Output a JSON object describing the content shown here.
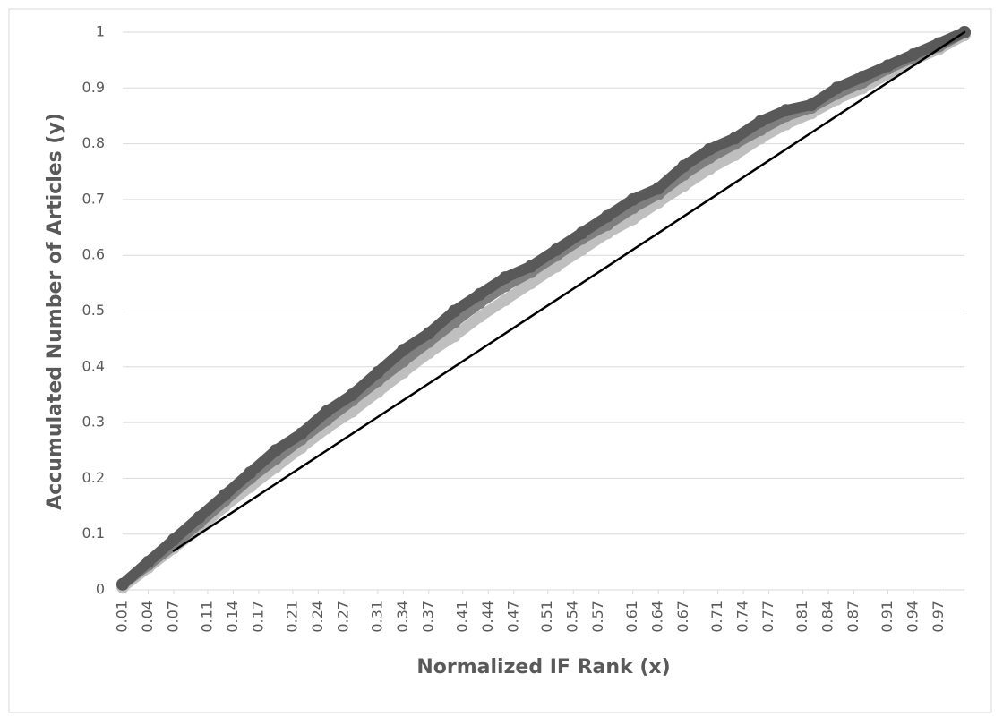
{
  "chart_data": {
    "type": "scatter-line",
    "x_label": "Normalized IF Rank (x)",
    "y_label": "Accumulated Number of Articles (y)",
    "x": [
      0.01,
      0.04,
      0.07,
      0.1,
      0.13,
      0.16,
      0.19,
      0.22,
      0.25,
      0.28,
      0.31,
      0.34,
      0.37,
      0.4,
      0.43,
      0.46,
      0.49,
      0.52,
      0.55,
      0.58,
      0.61,
      0.64,
      0.67,
      0.7,
      0.73,
      0.76,
      0.79,
      0.82,
      0.85,
      0.88,
      0.91,
      0.94,
      0.97,
      1.0
    ],
    "series": [
      {
        "color": "#bfbfbf",
        "values": [
          0.005,
          0.04,
          0.075,
          0.11,
          0.15,
          0.185,
          0.22,
          0.255,
          0.29,
          0.32,
          0.355,
          0.39,
          0.425,
          0.455,
          0.49,
          0.52,
          0.55,
          0.58,
          0.61,
          0.64,
          0.665,
          0.695,
          0.725,
          0.755,
          0.78,
          0.81,
          0.835,
          0.855,
          0.88,
          0.9,
          0.925,
          0.95,
          0.97,
          0.995
        ]
      },
      {
        "color": "#7f7f7f",
        "values": [
          0.01,
          0.045,
          0.08,
          0.12,
          0.16,
          0.2,
          0.235,
          0.27,
          0.305,
          0.34,
          0.375,
          0.41,
          0.445,
          0.48,
          0.515,
          0.545,
          0.57,
          0.6,
          0.63,
          0.655,
          0.685,
          0.71,
          0.745,
          0.775,
          0.8,
          0.825,
          0.85,
          0.865,
          0.89,
          0.91,
          0.935,
          0.955,
          0.975,
          1.0
        ]
      },
      {
        "color": "#595959",
        "values": [
          0.01,
          0.05,
          0.09,
          0.13,
          0.17,
          0.21,
          0.25,
          0.28,
          0.32,
          0.35,
          0.39,
          0.43,
          0.46,
          0.5,
          0.53,
          0.56,
          0.58,
          0.61,
          0.64,
          0.67,
          0.7,
          0.72,
          0.76,
          0.79,
          0.81,
          0.84,
          0.86,
          0.87,
          0.9,
          0.92,
          0.94,
          0.96,
          0.98,
          1.0
        ]
      },
      {
        "color": "#000000",
        "markers": false,
        "values": [
          null,
          null,
          0.07,
          0.1,
          0.13,
          0.16,
          0.19,
          0.22,
          0.25,
          0.28,
          0.31,
          0.34,
          0.37,
          0.4,
          0.43,
          0.46,
          0.49,
          0.52,
          0.55,
          0.58,
          0.61,
          0.64,
          0.67,
          0.7,
          0.73,
          0.76,
          0.79,
          0.82,
          0.85,
          0.88,
          0.91,
          0.94,
          0.97,
          1.0
        ]
      }
    ],
    "xlim": [
      0.01,
      1
    ],
    "xticks": [
      0.01,
      0.04,
      0.07,
      0.11,
      0.14,
      0.17,
      0.21,
      0.24,
      0.27,
      0.31,
      0.34,
      0.37,
      0.41,
      0.44,
      0.47,
      0.51,
      0.54,
      0.57,
      0.61,
      0.64,
      0.67,
      0.71,
      0.74,
      0.77,
      0.81,
      0.84,
      0.87,
      0.91,
      0.94,
      0.97
    ],
    "ylim": [
      0,
      1
    ],
    "yticks": [
      0,
      0.1,
      0.2,
      0.3,
      0.4,
      0.5,
      0.6,
      0.7,
      0.8,
      0.9,
      1
    ],
    "grid": true
  }
}
